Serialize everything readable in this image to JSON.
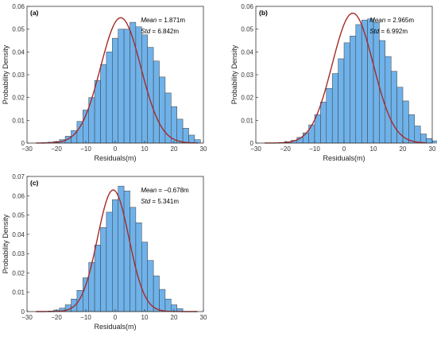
{
  "colors": {
    "bar_fill": "#6FB2EA",
    "bar_stroke": "#3C3C3C",
    "curve": "#A52A2A",
    "axis": "#333333"
  },
  "chart_data": [
    {
      "type": "bar",
      "panel_label": "(a)",
      "xlabel": "Residuals(m)",
      "ylabel": "Probability Density",
      "xlim": [
        -30,
        30
      ],
      "ylim": [
        0,
        0.06
      ],
      "xticks": [
        "-30",
        "-20",
        "-10",
        "0",
        "10",
        "20",
        "30"
      ],
      "yticks": [
        "0",
        "0.01",
        "0.02",
        "0.03",
        "0.04",
        "0.05",
        "0.06"
      ],
      "mean_label": "Mean",
      "mean_value": " = 1.871m",
      "std_label": "Std",
      "std_value": " = 6.842m",
      "bin_width": 2,
      "bin_edges_start": -25,
      "values": [
        0.0002,
        0.0004,
        0.0007,
        0.0015,
        0.003,
        0.0055,
        0.0095,
        0.0145,
        0.02,
        0.0275,
        0.0345,
        0.04,
        0.046,
        0.05,
        0.05,
        0.053,
        0.051,
        0.0475,
        0.042,
        0.036,
        0.029,
        0.022,
        0.016,
        0.0105,
        0.0065,
        0.0035,
        0.0015
      ],
      "fit": {
        "mean": 1.871,
        "std": 6.842,
        "peak": 0.055
      }
    },
    {
      "type": "bar",
      "panel_label": "(b)",
      "xlabel": "Residuals(m)",
      "ylabel": "Probability Density",
      "xlim": [
        -30,
        30
      ],
      "ylim": [
        0,
        0.06
      ],
      "xticks": [
        "-30",
        "-20",
        "-10",
        "0",
        "10",
        "20",
        "30"
      ],
      "yticks": [
        "0",
        "0.01",
        "0.02",
        "0.03",
        "0.04",
        "0.05",
        "0.06"
      ],
      "mean_label": "Mean",
      "mean_value": " = 2.965m",
      "std_label": "Std",
      "std_value": " = 6.992m",
      "bin_width": 2,
      "bin_edges_start": -22,
      "values": [
        0.0003,
        0.0006,
        0.0012,
        0.0025,
        0.0045,
        0.008,
        0.0125,
        0.018,
        0.024,
        0.0305,
        0.037,
        0.044,
        0.047,
        0.052,
        0.054,
        0.0545,
        0.053,
        0.045,
        0.038,
        0.0315,
        0.0245,
        0.0185,
        0.0125,
        0.0075,
        0.004,
        0.002,
        0.001
      ],
      "fit": {
        "mean": 2.965,
        "std": 6.992,
        "peak": 0.057
      }
    },
    {
      "type": "bar",
      "panel_label": "(c)",
      "xlabel": "Residuals(m)",
      "ylabel": "Probability Density",
      "xlim": [
        -30,
        30
      ],
      "ylim": [
        0,
        0.07
      ],
      "xticks": [
        "-30",
        "-20",
        "-10",
        "0",
        "10",
        "20",
        "30"
      ],
      "yticks": [
        "0",
        "0.01",
        "0.02",
        "0.03",
        "0.04",
        "0.05",
        "0.06",
        "0.07"
      ],
      "mean_label": "Mean",
      "mean_value": " = −0.678m",
      "std_label": "Std",
      "std_value": " = 5.341m",
      "bin_width": 2,
      "bin_edges_start": -23,
      "values": [
        0.0003,
        0.0008,
        0.0018,
        0.0035,
        0.0065,
        0.011,
        0.0175,
        0.0255,
        0.0345,
        0.0435,
        0.0515,
        0.058,
        0.065,
        0.0625,
        0.054,
        0.046,
        0.036,
        0.0265,
        0.0185,
        0.0115,
        0.0065,
        0.0035,
        0.0015
      ],
      "fit": {
        "mean": -0.678,
        "std": 5.341,
        "peak": 0.063
      }
    }
  ]
}
